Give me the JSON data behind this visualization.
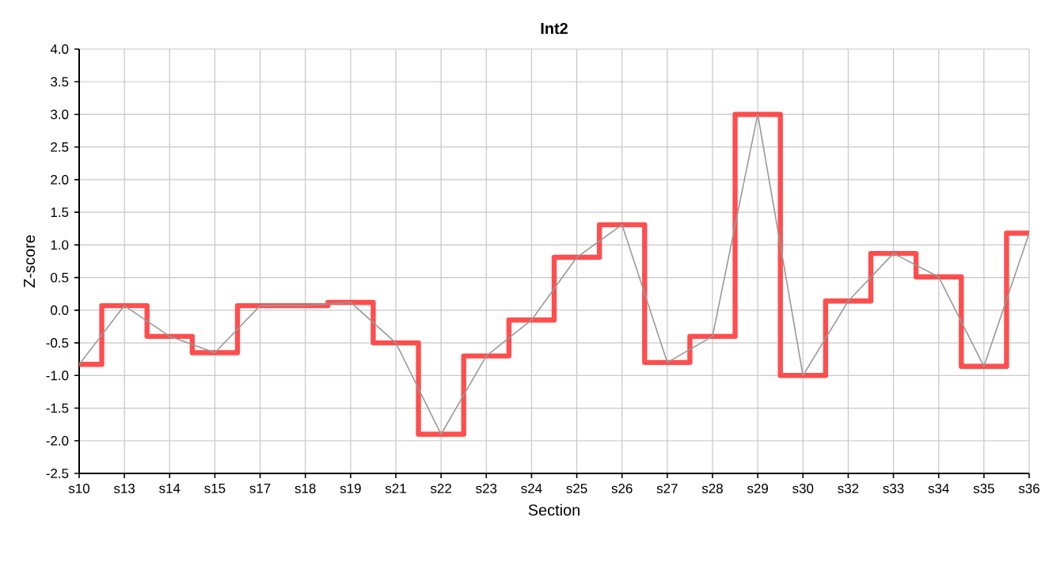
{
  "chart_data": {
    "type": "step",
    "title": "Int2",
    "xlabel": "Section",
    "ylabel": "Z-score",
    "categories": [
      "s10",
      "s13",
      "s14",
      "s15",
      "s17",
      "s18",
      "s19",
      "s21",
      "s22",
      "s23",
      "s24",
      "s25",
      "s26",
      "s27",
      "s28",
      "s29",
      "s30",
      "s32",
      "s33",
      "s34",
      "s35",
      "s36"
    ],
    "series": [
      {
        "color": "#ff3b3b",
        "values": [
          -0.83,
          0.07,
          -0.4,
          -0.65,
          0.07,
          0.07,
          0.12,
          -0.5,
          -1.9,
          -0.7,
          -0.15,
          0.81,
          1.31,
          -0.8,
          -0.4,
          3.0,
          -1.0,
          0.14,
          0.87,
          0.51,
          -0.86,
          1.18
        ]
      },
      {
        "type": "line",
        "color": "#999999",
        "values": [
          -0.83,
          0.07,
          -0.4,
          -0.65,
          0.07,
          0.07,
          0.12,
          -0.5,
          -1.9,
          -0.7,
          -0.15,
          0.81,
          1.31,
          -0.8,
          -0.4,
          3.0,
          -1.0,
          0.14,
          0.87,
          0.51,
          -0.86,
          1.18
        ]
      }
    ],
    "ylim": [
      -2.5,
      4.0
    ],
    "yticks": [
      {
        "value": -2.5,
        "label": "-2.5"
      },
      {
        "value": -2,
        "label": "-2.0"
      },
      {
        "value": -1.5,
        "label": "-1.5"
      },
      {
        "value": -1,
        "label": "-1.0"
      },
      {
        "value": -0.5,
        "label": "-0.5"
      },
      {
        "value": 0,
        "label": "0.0"
      },
      {
        "value": 0.5,
        "label": "0.5"
      },
      {
        "value": 1,
        "label": "1.0"
      },
      {
        "value": 1.5,
        "label": "1.5"
      },
      {
        "value": 2,
        "label": "2.0"
      },
      {
        "value": 2.5,
        "label": "2.5"
      },
      {
        "value": 3,
        "label": "3.0"
      },
      {
        "value": 3.5,
        "label": "3.5"
      },
      {
        "value": 4,
        "label": "4.0"
      }
    ],
    "grid": true,
    "marker": "none",
    "line_style": "solid"
  }
}
